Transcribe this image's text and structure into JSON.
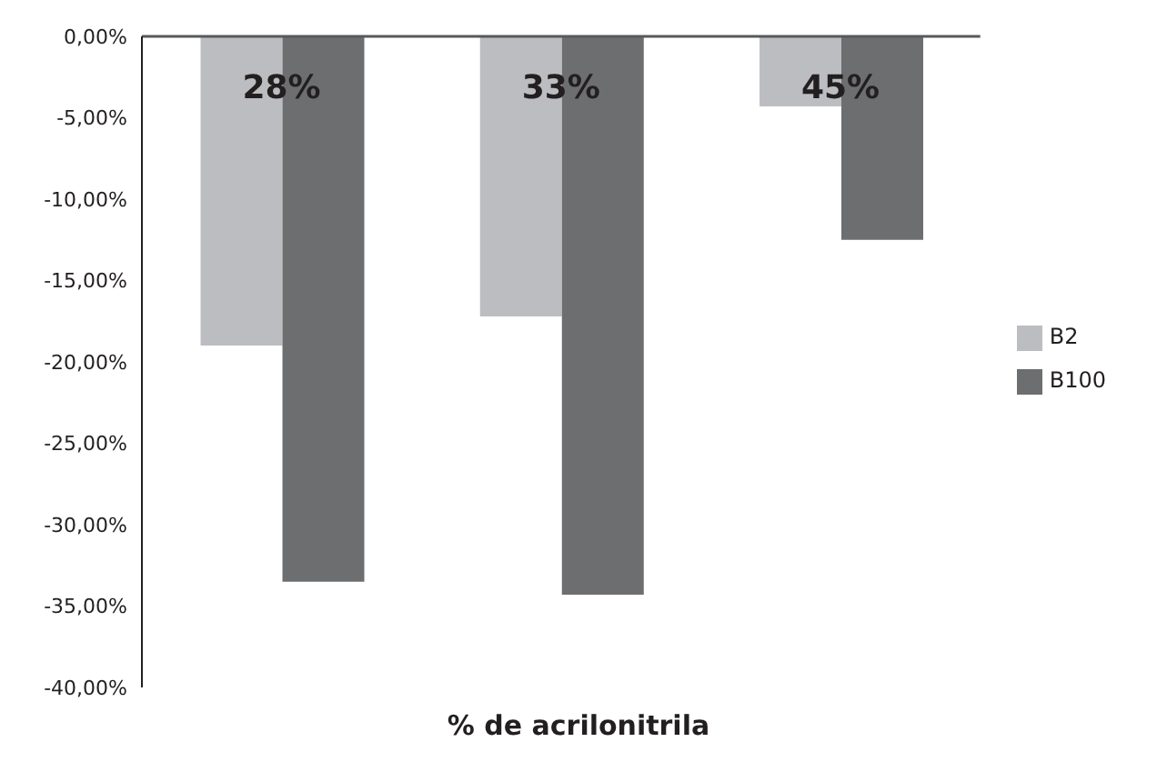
{
  "chart_data": {
    "type": "bar",
    "xlabel": "% de acrilonitrila",
    "categories": [
      "28%",
      "33%",
      "45%"
    ],
    "series": [
      {
        "name": "B2",
        "color": "#bcbdc0",
        "values": [
          -19.0,
          -17.2,
          -4.3
        ]
      },
      {
        "name": "B100",
        "color": "#6d6e70",
        "values": [
          -33.5,
          -34.3,
          -12.5
        ]
      }
    ],
    "ylim": [
      -40,
      0
    ],
    "yticks": [
      {
        "value": 0,
        "label": "0,00%"
      },
      {
        "value": -5,
        "label": "-5,00%"
      },
      {
        "value": -10,
        "label": "-10,00%"
      },
      {
        "value": -15,
        "label": "-15,00%"
      },
      {
        "value": -20,
        "label": "-20,00%"
      },
      {
        "value": -25,
        "label": "-25,00%"
      },
      {
        "value": -30,
        "label": "-30,00%"
      },
      {
        "value": -35,
        "label": "-35,00%"
      },
      {
        "value": -40,
        "label": "-40,00%"
      }
    ],
    "grid": false,
    "legend": "right"
  }
}
